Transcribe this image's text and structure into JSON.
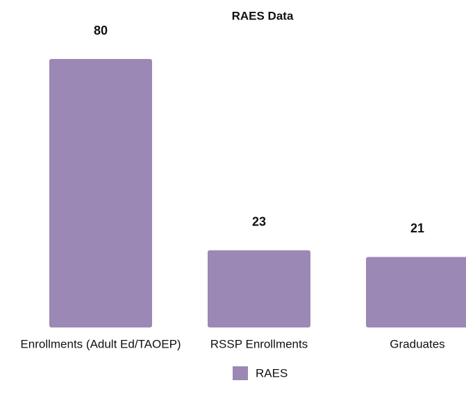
{
  "chart_data": {
    "type": "bar",
    "title": "RAES Data",
    "categories": [
      "Enrollments (Adult Ed/TAOEP)",
      "RSSP Enrollments",
      "Graduates"
    ],
    "series": [
      {
        "name": "RAES",
        "color": "#9b88b5",
        "values": [
          80,
          23,
          21
        ]
      }
    ],
    "legend": "bottom"
  }
}
